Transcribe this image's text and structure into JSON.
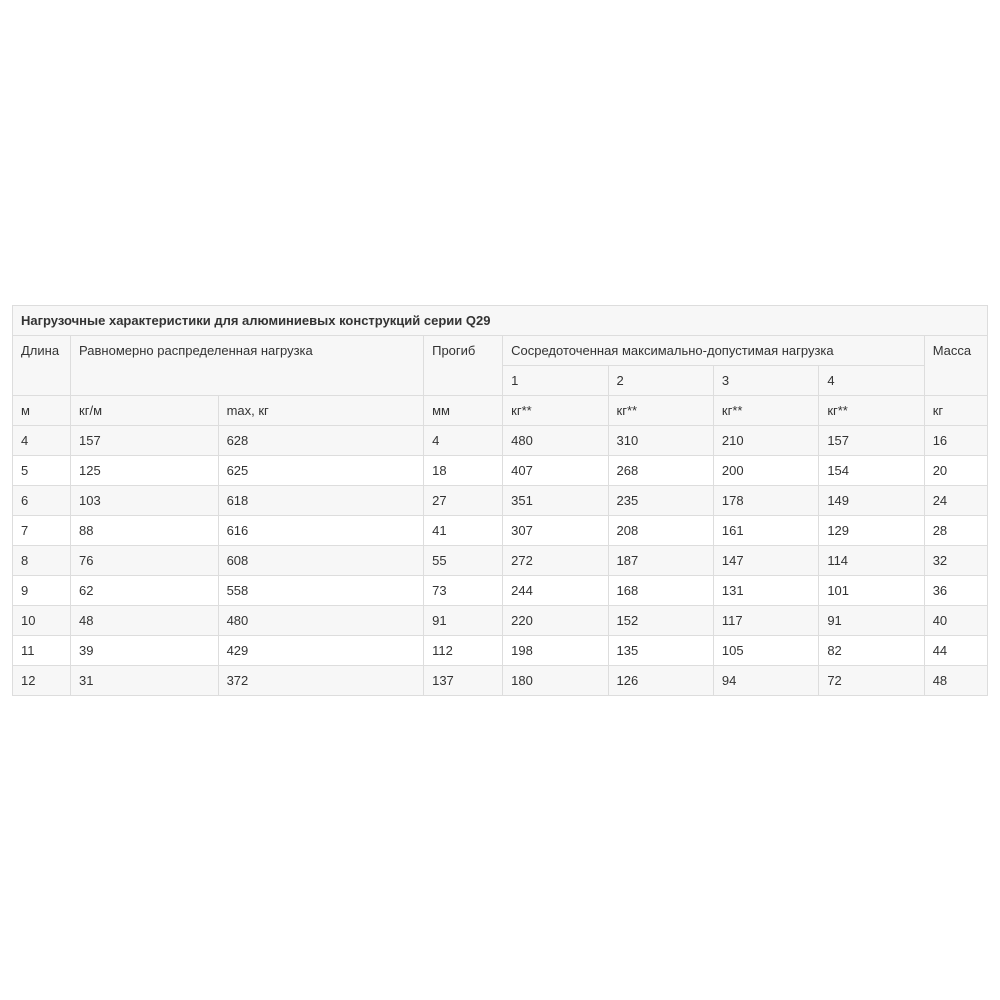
{
  "table": {
    "title": "Нагрузочные характеристики для алюминиевых конструкций серии Q29",
    "header": {
      "length": "Длина",
      "distributed": "Равномерно распределенная нагрузка",
      "deflection": "Прогиб",
      "concentrated": "Сосредоточенная максимально-допустимая нагрузка",
      "mass": "Масса",
      "conc_sub": [
        "1",
        "2",
        "3",
        "4"
      ],
      "units": {
        "length": "м",
        "dist1": "кг/м",
        "dist2": "max, кг",
        "deflection": "мм",
        "conc1": "кг**",
        "conc2": "кг**",
        "conc3": "кг**",
        "conc4": "кг**",
        "mass": "кг"
      }
    },
    "rows": [
      {
        "length": "4",
        "dist1": "157",
        "dist2": "628",
        "deflection": "4",
        "c1": "480",
        "c2": "310",
        "c3": "210",
        "c4": "157",
        "mass": "16"
      },
      {
        "length": "5",
        "dist1": "125",
        "dist2": "625",
        "deflection": "18",
        "c1": "407",
        "c2": "268",
        "c3": "200",
        "c4": "154",
        "mass": "20"
      },
      {
        "length": "6",
        "dist1": "103",
        "dist2": "618",
        "deflection": "27",
        "c1": "351",
        "c2": "235",
        "c3": "178",
        "c4": "149",
        "mass": "24"
      },
      {
        "length": "7",
        "dist1": "88",
        "dist2": "616",
        "deflection": "41",
        "c1": "307",
        "c2": "208",
        "c3": "161",
        "c4": "129",
        "mass": "28"
      },
      {
        "length": "8",
        "dist1": "76",
        "dist2": "608",
        "deflection": "55",
        "c1": "272",
        "c2": "187",
        "c3": "147",
        "c4": "114",
        "mass": "32"
      },
      {
        "length": "9",
        "dist1": "62",
        "dist2": "558",
        "deflection": "73",
        "c1": "244",
        "c2": "168",
        "c3": "131",
        "c4": "101",
        "mass": "36"
      },
      {
        "length": "10",
        "dist1": "48",
        "dist2": "480",
        "deflection": "91",
        "c1": "220",
        "c2": "152",
        "c3": "117",
        "c4": "91",
        "mass": "40"
      },
      {
        "length": "11",
        "dist1": "39",
        "dist2": "429",
        "deflection": "112",
        "c1": "198",
        "c2": "135",
        "c3": "105",
        "c4": "82",
        "mass": "44"
      },
      {
        "length": "12",
        "dist1": "31",
        "dist2": "372",
        "deflection": "137",
        "c1": "180",
        "c2": "126",
        "c3": "94",
        "c4": "72",
        "mass": "48"
      }
    ],
    "style": {
      "border_color": "#dddddd",
      "header_bg": "#f7f7f7",
      "row_odd_bg": "#f7f7f7",
      "row_even_bg": "#ffffff",
      "text_color": "#333333",
      "font_size": 13
    }
  }
}
